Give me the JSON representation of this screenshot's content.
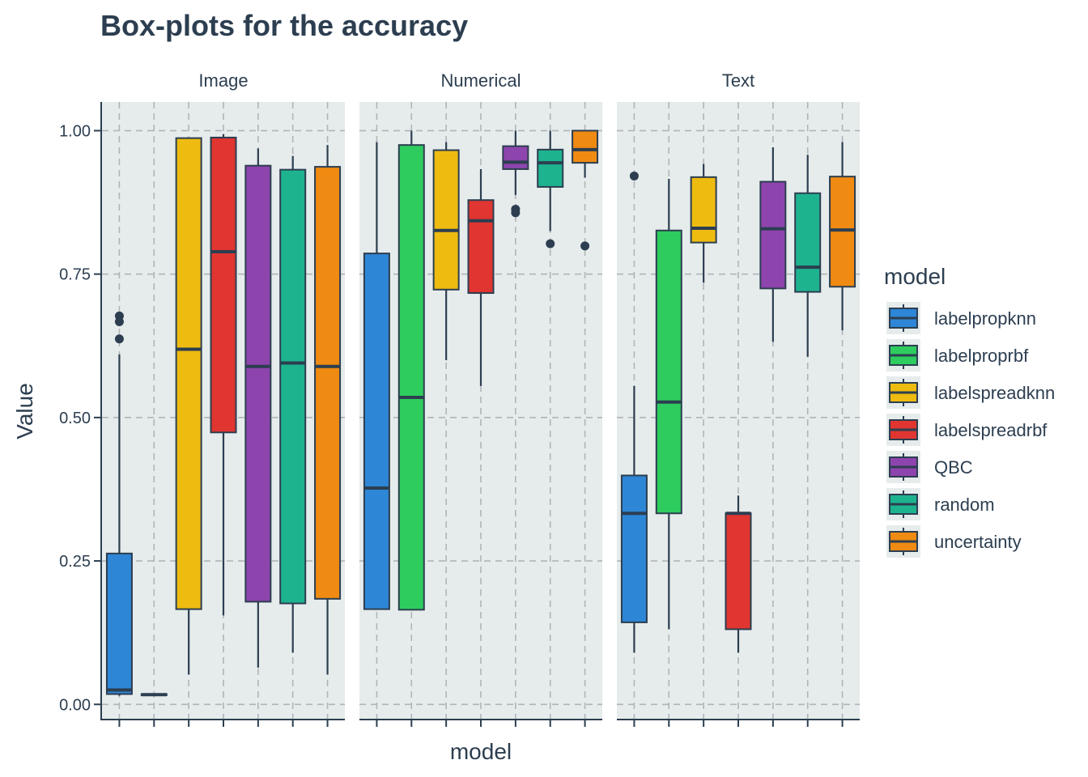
{
  "chart_data": {
    "type": "boxplot",
    "title": "Box-plots for the accuracy",
    "xlabel": "model",
    "ylabel": "Value",
    "ylim": [
      -0.025,
      1.05
    ],
    "yticks": [
      0.0,
      0.25,
      0.5,
      0.75,
      1.0
    ],
    "ytick_labels": [
      "0.00",
      "0.25",
      "0.50",
      "0.75",
      "1.00"
    ],
    "grid": true,
    "legend": {
      "title": "model",
      "position": "right"
    },
    "categories": [
      "labelpropknn",
      "labelproprbf",
      "labelspreadknn",
      "labelspreadrbf",
      "QBC",
      "random",
      "uncertainty"
    ],
    "colors": {
      "labelpropknn": "#2e86d6",
      "labelproprbf": "#2ecc5e",
      "labelspreadknn": "#eebb11",
      "labelspreadrbf": "#e03530",
      "QBC": "#8e44ad",
      "random": "#1eb38f",
      "uncertainty": "#ef8a12"
    },
    "facets": [
      {
        "name": "Image",
        "boxes": [
          {
            "model": "labelpropknn",
            "whisker_low": 0.015,
            "q1": 0.018,
            "median": 0.025,
            "q3": 0.263,
            "whisker_high": 0.61,
            "outliers": [
              0.637,
              0.667,
              0.677
            ]
          },
          {
            "model": "labelproprbf",
            "whisker_low": 0.016,
            "q1": 0.016,
            "median": 0.017,
            "q3": 0.018,
            "whisker_high": 0.018,
            "outliers": []
          },
          {
            "model": "labelspreadknn",
            "whisker_low": 0.052,
            "q1": 0.166,
            "median": 0.619,
            "q3": 0.987,
            "whisker_high": 0.987,
            "outliers": []
          },
          {
            "model": "labelspreadrbf",
            "whisker_low": 0.155,
            "q1": 0.474,
            "median": 0.789,
            "q3": 0.988,
            "whisker_high": 0.994,
            "outliers": []
          },
          {
            "model": "QBC",
            "whisker_low": 0.064,
            "q1": 0.179,
            "median": 0.589,
            "q3": 0.939,
            "whisker_high": 0.969,
            "outliers": []
          },
          {
            "model": "random",
            "whisker_low": 0.09,
            "q1": 0.176,
            "median": 0.595,
            "q3": 0.932,
            "whisker_high": 0.956,
            "outliers": []
          },
          {
            "model": "uncertainty",
            "whisker_low": 0.052,
            "q1": 0.184,
            "median": 0.589,
            "q3": 0.937,
            "whisker_high": 0.975,
            "outliers": []
          }
        ]
      },
      {
        "name": "Numerical",
        "boxes": [
          {
            "model": "labelpropknn",
            "whisker_low": 0.166,
            "q1": 0.166,
            "median": 0.377,
            "q3": 0.786,
            "whisker_high": 0.98,
            "outliers": []
          },
          {
            "model": "labelproprbf",
            "whisker_low": 0.165,
            "q1": 0.165,
            "median": 0.535,
            "q3": 0.975,
            "whisker_high": 1.0,
            "outliers": []
          },
          {
            "model": "labelspreadknn",
            "whisker_low": 0.6,
            "q1": 0.723,
            "median": 0.826,
            "q3": 0.966,
            "whisker_high": 0.98,
            "outliers": []
          },
          {
            "model": "labelspreadrbf",
            "whisker_low": 0.555,
            "q1": 0.717,
            "median": 0.843,
            "q3": 0.879,
            "whisker_high": 0.933,
            "outliers": []
          },
          {
            "model": "QBC",
            "whisker_low": 0.888,
            "q1": 0.933,
            "median": 0.945,
            "q3": 0.973,
            "whisker_high": 1.0,
            "outliers": [
              0.857,
              0.863
            ]
          },
          {
            "model": "random",
            "whisker_low": 0.825,
            "q1": 0.902,
            "median": 0.944,
            "q3": 0.967,
            "whisker_high": 1.0,
            "outliers": [
              0.803
            ]
          },
          {
            "model": "uncertainty",
            "whisker_low": 0.918,
            "q1": 0.944,
            "median": 0.967,
            "q3": 1.0,
            "whisker_high": 1.0,
            "outliers": [
              0.799
            ]
          }
        ]
      },
      {
        "name": "Text",
        "boxes": [
          {
            "model": "labelpropknn",
            "whisker_low": 0.09,
            "q1": 0.143,
            "median": 0.333,
            "q3": 0.399,
            "whisker_high": 0.555,
            "outliers": [
              0.921
            ]
          },
          {
            "model": "labelproprbf",
            "whisker_low": 0.131,
            "q1": 0.333,
            "median": 0.527,
            "q3": 0.826,
            "whisker_high": 0.916,
            "outliers": []
          },
          {
            "model": "labelspreadknn",
            "whisker_low": 0.735,
            "q1": 0.805,
            "median": 0.83,
            "q3": 0.919,
            "whisker_high": 0.942,
            "outliers": []
          },
          {
            "model": "labelspreadrbf",
            "whisker_low": 0.09,
            "q1": 0.131,
            "median": 0.333,
            "q3": 0.333,
            "whisker_high": 0.364,
            "outliers": []
          },
          {
            "model": "QBC",
            "whisker_low": 0.632,
            "q1": 0.725,
            "median": 0.829,
            "q3": 0.911,
            "whisker_high": 0.971,
            "outliers": []
          },
          {
            "model": "random",
            "whisker_low": 0.606,
            "q1": 0.719,
            "median": 0.762,
            "q3": 0.891,
            "whisker_high": 0.958,
            "outliers": []
          },
          {
            "model": "uncertainty",
            "whisker_low": 0.652,
            "q1": 0.728,
            "median": 0.827,
            "q3": 0.92,
            "whisker_high": 0.98,
            "outliers": []
          }
        ]
      }
    ]
  }
}
